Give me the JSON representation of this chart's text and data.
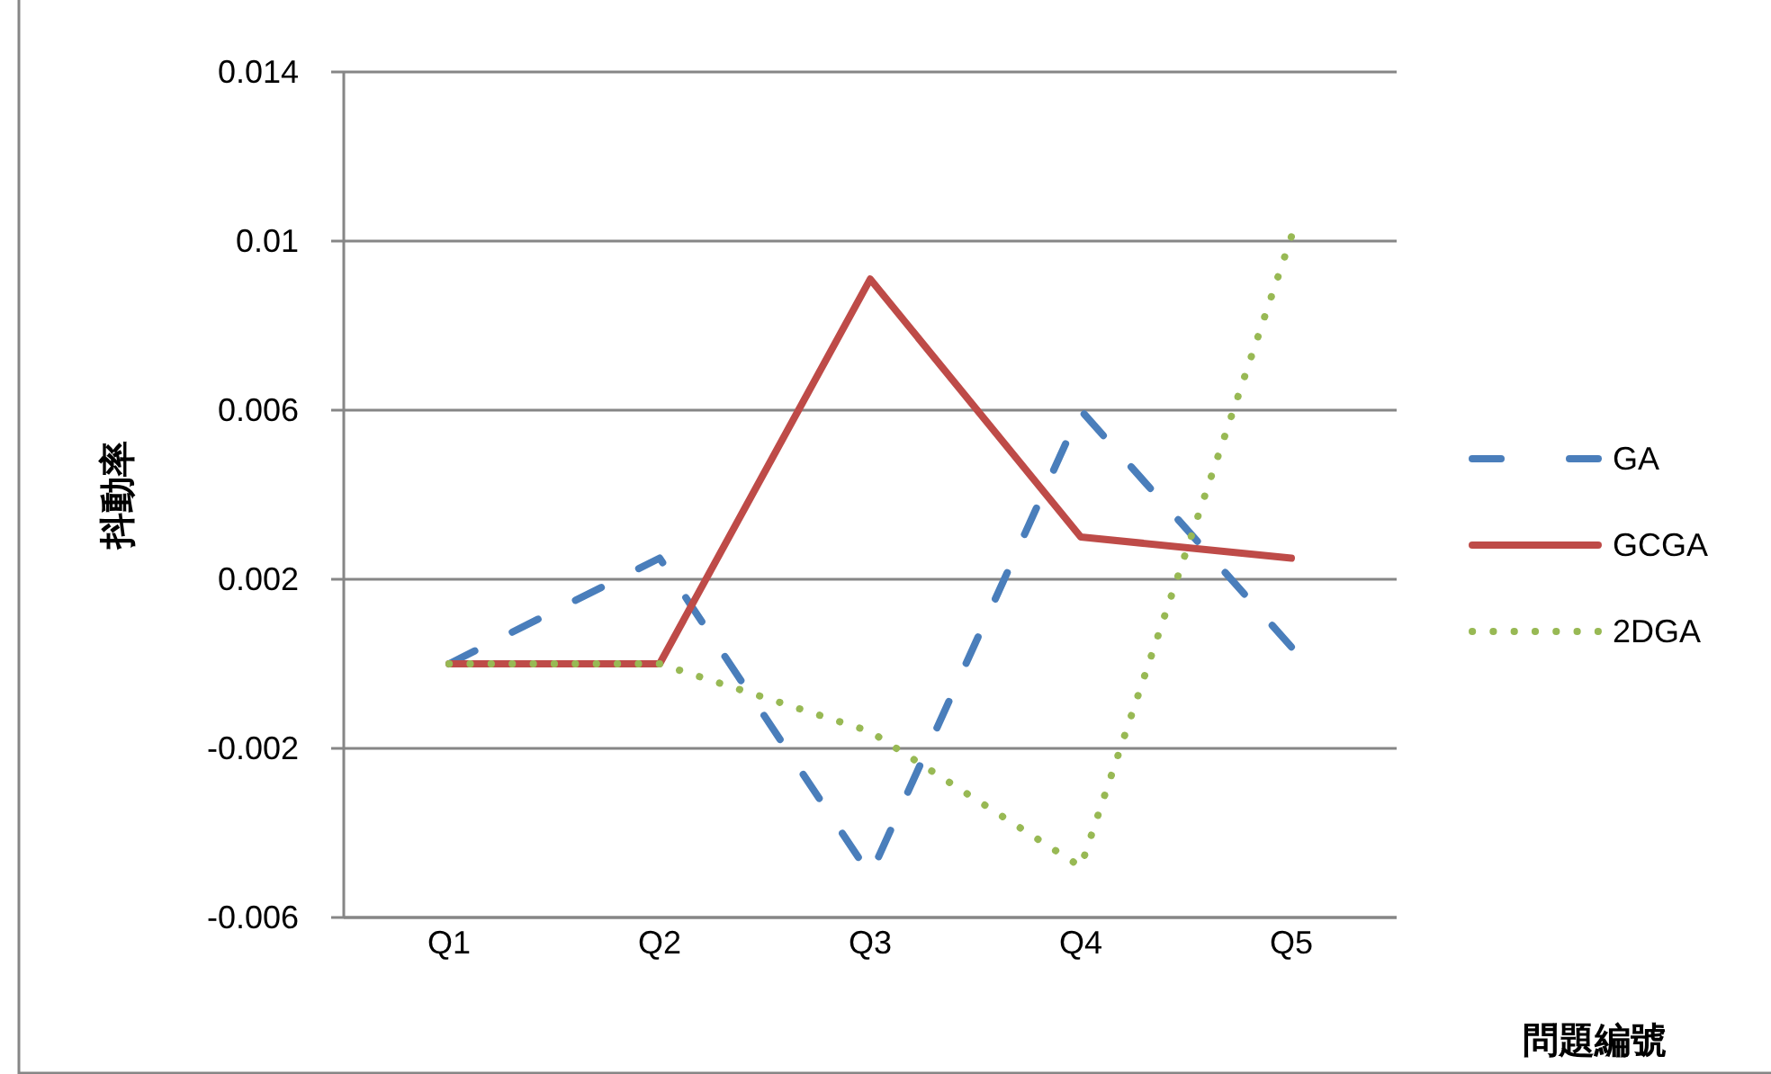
{
  "chart_data": {
    "type": "line",
    "categories": [
      "Q1",
      "Q2",
      "Q3",
      "Q4",
      "Q5"
    ],
    "xlabel": "問題編號",
    "ylabel": "抖動率",
    "ylim": [
      -0.006,
      0.014
    ],
    "yticks": [
      -0.006,
      -0.002,
      0.002,
      0.006,
      0.01,
      0.014
    ],
    "grid": "y",
    "legend": "right",
    "series": [
      {
        "name": "GA",
        "color": "#4a7ebb",
        "line_style": "dashed",
        "values": [
          0,
          0.0025,
          -0.005,
          0.006,
          0.0004
        ]
      },
      {
        "name": "GCGA",
        "color": "#be4b48",
        "line_style": "solid",
        "values": [
          0,
          0,
          0.0091,
          0.003,
          0.0025
        ]
      },
      {
        "name": "2DGA",
        "color": "#98b954",
        "line_style": "dotted",
        "values": [
          0,
          0,
          -0.0016,
          -0.0048,
          0.0101
        ]
      }
    ]
  }
}
